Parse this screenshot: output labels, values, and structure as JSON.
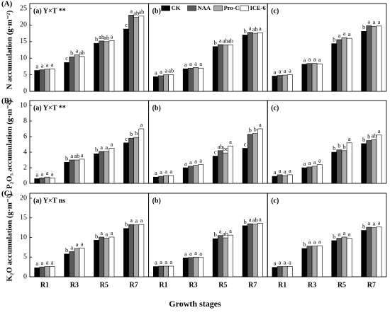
{
  "chart_data": {
    "type": "bar",
    "x_label": "Growth stages",
    "categories": [
      "R1",
      "R3",
      "R5",
      "R7"
    ],
    "legend": [
      {
        "name": "CK",
        "color": "#000000"
      },
      {
        "name": "NAA",
        "color": "#5a5a5a"
      },
      {
        "name": "Pro-Ca",
        "color": "#ababab"
      },
      {
        "name": "ICE-6",
        "color": "#ffffff"
      }
    ],
    "rows": [
      {
        "label": "(A)",
        "y_label": "N accumulation (g·m⁻²)",
        "ylim": [
          0,
          25
        ],
        "yticks": [
          0,
          5,
          10,
          15,
          20,
          25
        ],
        "panels": [
          {
            "title": "(a) Y×T **",
            "series": [
              {
                "values": [
                  6.3,
                  8.7,
                  14.5,
                  18.8
                ],
                "letters": [
                  "a",
                  "c",
                  "b",
                  "c"
                ]
              },
              {
                "values": [
                  6.5,
                  10.4,
                  15.2,
                  23.0
                ],
                "letters": [
                  "a",
                  "b",
                  "ab",
                  "a"
                ]
              },
              {
                "values": [
                  6.7,
                  11.0,
                  15.0,
                  22.3
                ],
                "letters": [
                  "a",
                  "a",
                  "ab",
                  "ab"
                ]
              },
              {
                "values": [
                  6.8,
                  10.5,
                  15.3,
                  22.7
                ],
                "letters": [
                  "a",
                  "ab",
                  "a",
                  "ab"
                ]
              }
            ]
          },
          {
            "title": "(b)",
            "series": [
              {
                "values": [
                  4.4,
                  6.8,
                  13.5,
                  17.0
                ],
                "letters": [
                  "a",
                  "a",
                  "b",
                  "b"
                ]
              },
              {
                "values": [
                  4.7,
                  7.0,
                  14.1,
                  17.8
                ],
                "letters": [
                  "a",
                  "a",
                  "a",
                  "a"
                ]
              },
              {
                "values": [
                  5.0,
                  7.2,
                  14.0,
                  17.5
                ],
                "letters": [
                  "a",
                  "a",
                  "ab",
                  "ab"
                ]
              },
              {
                "values": [
                  5.0,
                  7.0,
                  14.0,
                  17.7
                ],
                "letters": [
                  "ab",
                  "a",
                  "ab",
                  "a"
                ]
              }
            ]
          },
          {
            "title": "(c)",
            "series": [
              {
                "values": [
                  4.6,
                  8.2,
                  14.4,
                  18.1
                ],
                "letters": [
                  "a",
                  "a",
                  "b",
                  "b"
                ]
              },
              {
                "values": [
                  4.8,
                  8.4,
                  15.6,
                  19.8
                ],
                "letters": [
                  "a",
                  "a",
                  "a",
                  "a"
                ]
              },
              {
                "values": [
                  4.9,
                  8.4,
                  16.2,
                  19.6
                ],
                "letters": [
                  "a",
                  "a",
                  "a",
                  "a"
                ]
              },
              {
                "values": [
                  5.0,
                  8.3,
                  16.0,
                  19.7
                ],
                "letters": [
                  "a",
                  "a",
                  "a",
                  "a"
                ]
              }
            ]
          }
        ]
      },
      {
        "label": "(B)",
        "y_label": "P₂O₅ accumulation (g·m⁻²)",
        "ylim": [
          0,
          10
        ],
        "yticks": [
          0,
          2,
          4,
          6,
          8,
          10
        ],
        "panels": [
          {
            "title": "(a) Y×T **",
            "series": [
              {
                "values": [
                  0.6,
                  2.7,
                  3.8,
                  5.2
                ],
                "letters": [
                  "a",
                  "b",
                  "b",
                  "c"
                ]
              },
              {
                "values": [
                  0.7,
                  3.0,
                  4.1,
                  5.8
                ],
                "letters": [
                  "a",
                  "a",
                  "a",
                  "b"
                ]
              },
              {
                "values": [
                  0.8,
                  3.0,
                  4.1,
                  5.9
                ],
                "letters": [
                  "a",
                  "ab",
                  "a",
                  "b"
                ]
              },
              {
                "values": [
                  0.7,
                  3.1,
                  4.5,
                  7.0
                ],
                "letters": [
                  "a",
                  "a",
                  "a",
                  "a"
                ]
              }
            ]
          },
          {
            "title": "(b)",
            "series": [
              {
                "values": [
                  0.8,
                  2.0,
                  3.5,
                  4.5
                ],
                "letters": [
                  "a",
                  "a",
                  "c",
                  "c"
                ]
              },
              {
                "values": [
                  0.9,
                  2.2,
                  4.2,
                  6.3
                ],
                "letters": [
                  "a",
                  "a",
                  "ab",
                  "b"
                ]
              },
              {
                "values": [
                  1.0,
                  2.3,
                  3.9,
                  6.4
                ],
                "letters": [
                  "a",
                  "a",
                  "bc",
                  "b"
                ]
              },
              {
                "values": [
                  1.0,
                  2.4,
                  4.8,
                  7.0
                ],
                "letters": [
                  "a",
                  "a",
                  "a",
                  "a"
                ]
              }
            ]
          },
          {
            "title": "(c)",
            "series": [
              {
                "values": [
                  0.9,
                  2.0,
                  4.0,
                  5.1
                ],
                "letters": [
                  "a",
                  "a",
                  "b",
                  "b"
                ]
              },
              {
                "values": [
                  1.1,
                  2.1,
                  4.3,
                  5.5
                ],
                "letters": [
                  "a",
                  "a",
                  "b",
                  "b"
                ]
              },
              {
                "values": [
                  1.0,
                  2.2,
                  4.2,
                  5.6
                ],
                "letters": [
                  "a",
                  "a",
                  "b",
                  "ab"
                ]
              },
              {
                "values": [
                  1.1,
                  2.4,
                  5.2,
                  6.2
                ],
                "letters": [
                  "a",
                  "a",
                  "a",
                  "a"
                ]
              }
            ]
          }
        ]
      },
      {
        "label": "(C)",
        "y_label": "K₂O accumulation (g·m⁻²)",
        "ylim": [
          0,
          20
        ],
        "yticks": [
          0,
          5,
          10,
          15,
          20
        ],
        "panels": [
          {
            "title": "(a) Y×T ns",
            "series": [
              {
                "values": [
                  2.3,
                  5.8,
                  9.3,
                  12.3
                ],
                "letters": [
                  "a",
                  "b",
                  "b",
                  "b"
                ]
              },
              {
                "values": [
                  2.5,
                  6.4,
                  10.1,
                  13.3
                ],
                "letters": [
                  "a",
                  "a",
                  "a",
                  "a"
                ]
              },
              {
                "values": [
                  2.6,
                  7.2,
                  9.8,
                  13.2
                ],
                "letters": [
                  "a",
                  "a",
                  "a",
                  "a"
                ]
              },
              {
                "values": [
                  2.6,
                  7.3,
                  10.1,
                  13.3
                ],
                "letters": [
                  "a",
                  "a",
                  "a",
                  "a"
                ]
              }
            ]
          },
          {
            "title": "(b)",
            "series": [
              {
                "values": [
                  2.6,
                  4.8,
                  9.7,
                  13.0
                ],
                "letters": [
                  "a",
                  "a",
                  "b",
                  "b"
                ]
              },
              {
                "values": [
                  2.7,
                  4.9,
                  10.5,
                  13.5
                ],
                "letters": [
                  "a",
                  "a",
                  "a",
                  "a"
                ]
              },
              {
                "values": [
                  2.7,
                  5.0,
                  9.9,
                  13.4
                ],
                "letters": [
                  "a",
                  "a",
                  "ab",
                  "ab"
                ]
              },
              {
                "values": [
                  2.7,
                  4.9,
                  10.6,
                  13.6
                ],
                "letters": [
                  "a",
                  "a",
                  "a",
                  "a"
                ]
              }
            ]
          },
          {
            "title": "(c)",
            "series": [
              {
                "values": [
                  2.4,
                  7.2,
                  9.2,
                  11.8
                ],
                "letters": [
                  "a",
                  "b",
                  "b",
                  "b"
                ]
              },
              {
                "values": [
                  2.6,
                  7.8,
                  9.8,
                  12.6
                ],
                "letters": [
                  "a",
                  "a",
                  "a",
                  "a"
                ]
              },
              {
                "values": [
                  2.6,
                  7.8,
                  10.1,
                  12.5
                ],
                "letters": [
                  "a",
                  "a",
                  "a",
                  "a"
                ]
              },
              {
                "values": [
                  2.6,
                  7.9,
                  9.8,
                  12.7
                ],
                "letters": [
                  "a",
                  "a",
                  "a",
                  "a"
                ]
              }
            ]
          }
        ]
      }
    ]
  }
}
